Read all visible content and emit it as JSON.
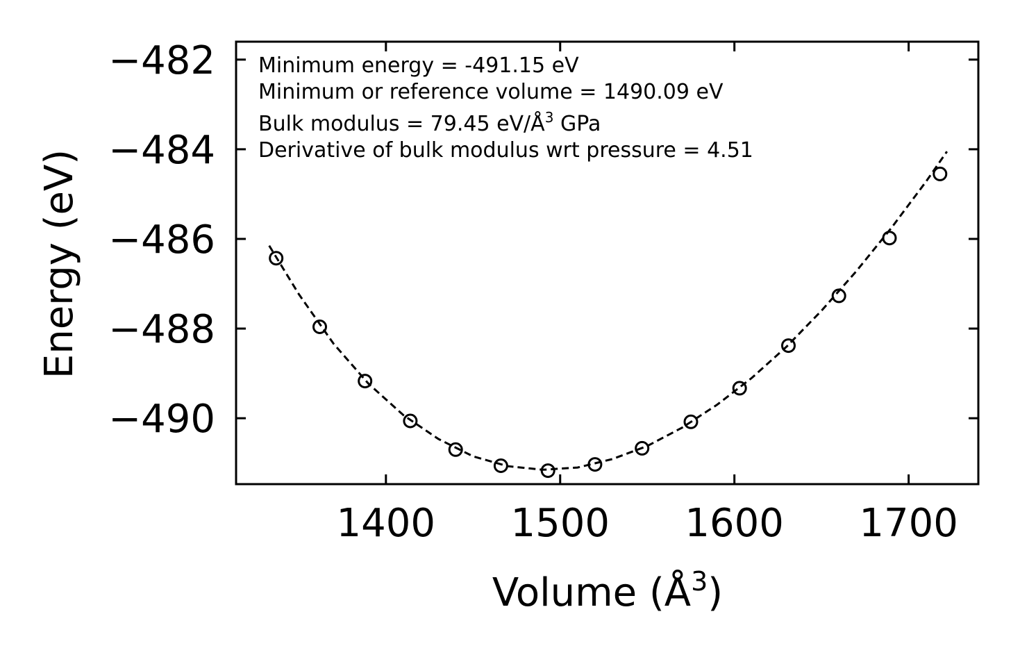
{
  "chart_data": {
    "type": "scatter",
    "title": "",
    "xlabel": "Volume (Å",
    "xlabel_sup": "3",
    "xlabel_suffix": ")",
    "ylabel": "Energy (eV)",
    "xlim": [
      1314,
      1740
    ],
    "ylim": [
      -491.47,
      -481.6
    ],
    "xticks": [
      1400,
      1500,
      1600,
      1700
    ],
    "yticks": [
      -482,
      -484,
      -486,
      -488,
      -490
    ],
    "xtick_labels": [
      "1400",
      "1500",
      "1600",
      "1700"
    ],
    "ytick_labels": [
      "−482",
      "−484",
      "−486",
      "−488",
      "−490"
    ],
    "grid": false,
    "series": [
      {
        "name": "data",
        "marker": "open-circle",
        "x": [
          1337,
          1362,
          1388,
          1414,
          1440,
          1466,
          1493,
          1520,
          1547,
          1575,
          1603,
          1631,
          1660,
          1689,
          1718
        ],
        "y": [
          -486.43,
          -487.96,
          -489.17,
          -490.06,
          -490.7,
          -491.06,
          -491.17,
          -491.03,
          -490.67,
          -490.08,
          -489.33,
          -488.38,
          -487.27,
          -485.98,
          -484.55
        ]
      },
      {
        "name": "fit",
        "style": "dashed-line",
        "x": [
          1333,
          1350,
          1370,
          1390,
          1410,
          1430,
          1450,
          1470,
          1490,
          1510,
          1530,
          1550,
          1570,
          1590,
          1610,
          1630,
          1650,
          1670,
          1690,
          1710,
          1722
        ],
        "y": [
          -486.15,
          -487.23,
          -488.34,
          -489.23,
          -489.93,
          -490.46,
          -490.85,
          -491.07,
          -491.15,
          -491.1,
          -490.91,
          -490.62,
          -490.21,
          -489.7,
          -489.1,
          -488.4,
          -487.6,
          -486.72,
          -485.76,
          -484.72,
          -484.05
        ]
      }
    ],
    "annotations": {
      "line1": "Minimum energy = -491.15 eV",
      "line2": "Minimum or reference volume = 1490.09 eV",
      "line3_prefix": "Bulk modulus = 79.45 eV/Å",
      "line3_sup": "3",
      "line3_suffix": " GPa",
      "line4": "Derivative of bulk modulus wrt pressure = 4.51"
    }
  }
}
